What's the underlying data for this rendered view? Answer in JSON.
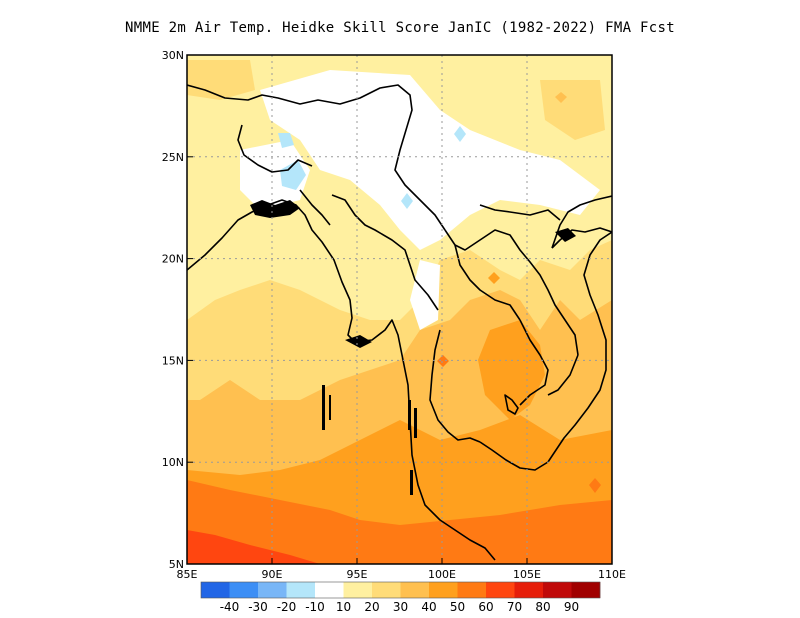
{
  "title": "NMME  2m Air Temp. Heidke Skill Score JanIC (1982-2022) FMA Fcst",
  "map": {
    "lon_range": [
      85,
      110
    ],
    "lat_range": [
      5,
      30
    ],
    "lon_ticks": [
      {
        "value": 85,
        "label": "85E"
      },
      {
        "value": 90,
        "label": "90E"
      },
      {
        "value": 95,
        "label": "95E"
      },
      {
        "value": 100,
        "label": "100E"
      },
      {
        "value": 105,
        "label": "105E"
      },
      {
        "value": 110,
        "label": "110E"
      }
    ],
    "lat_ticks": [
      {
        "value": 5,
        "label": "5N"
      },
      {
        "value": 10,
        "label": "10N"
      },
      {
        "value": 15,
        "label": "15N"
      },
      {
        "value": 20,
        "label": "20N"
      },
      {
        "value": 25,
        "label": "25N"
      },
      {
        "value": 30,
        "label": "30N"
      }
    ],
    "grid": "dotted"
  },
  "colorbar": {
    "colors": [
      "#2266e6",
      "#3c8ef5",
      "#78b6f7",
      "#b4e6fa",
      "#ffffff",
      "#fff0a0",
      "#ffdc78",
      "#ffc050",
      "#ffa01e",
      "#ff7a14",
      "#ff4610",
      "#e61e0a",
      "#c00a0a",
      "#a00000"
    ],
    "labels": [
      "-40",
      "-30",
      "-20",
      "-10",
      "10",
      "20",
      "30",
      "40",
      "50",
      "60",
      "70",
      "80",
      "90"
    ]
  }
}
